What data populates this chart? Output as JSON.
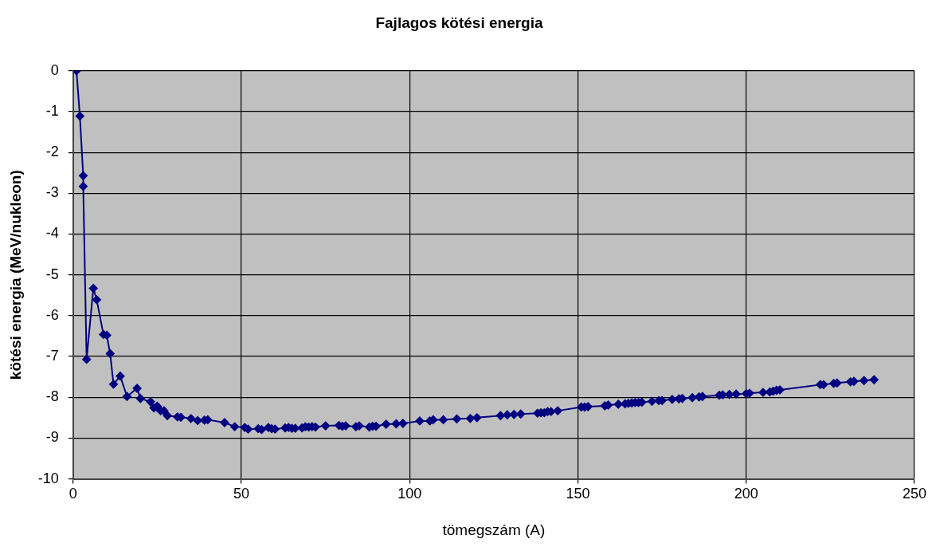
{
  "chart_data": {
    "type": "line",
    "title": "Fajlagos kötési energia",
    "xlabel": "tömegszám (A)",
    "ylabel": "kötési energia (MeV/nukleon)",
    "x": [
      1,
      2,
      3,
      3,
      4,
      6,
      7,
      9,
      10,
      11,
      12,
      14,
      16,
      19,
      20,
      23,
      24,
      25,
      26,
      27,
      28,
      31,
      32,
      35,
      37,
      39,
      40,
      45,
      48,
      51,
      52,
      55,
      56,
      58,
      59,
      60,
      63,
      64,
      65,
      66,
      68,
      69,
      70,
      71,
      72,
      75,
      79,
      80,
      81,
      84,
      85,
      88,
      89,
      90,
      93,
      96,
      98,
      103,
      106,
      107,
      110,
      114,
      118,
      120,
      127,
      129,
      131,
      133,
      138,
      139,
      140,
      141,
      142,
      144,
      151,
      152,
      153,
      158,
      159,
      162,
      164,
      165,
      166,
      167,
      168,
      169,
      172,
      174,
      175,
      178,
      180,
      181,
      184,
      186,
      187,
      192,
      193,
      195,
      197,
      200,
      201,
      205,
      207,
      208,
      209,
      210,
      222,
      223,
      226,
      227,
      231,
      232,
      235,
      238
    ],
    "series": [
      {
        "color": "#000080",
        "values": [
          0,
          -1.11,
          -2.57,
          -2.83,
          -7.07,
          -5.33,
          -5.61,
          -6.46,
          -6.48,
          -6.93,
          -7.68,
          -7.48,
          -7.98,
          -7.78,
          -8.03,
          -8.11,
          -8.26,
          -8.22,
          -8.33,
          -8.33,
          -8.45,
          -8.48,
          -8.49,
          -8.52,
          -8.57,
          -8.56,
          -8.55,
          -8.62,
          -8.72,
          -8.74,
          -8.78,
          -8.77,
          -8.79,
          -8.74,
          -8.77,
          -8.78,
          -8.75,
          -8.74,
          -8.76,
          -8.76,
          -8.75,
          -8.72,
          -8.73,
          -8.72,
          -8.73,
          -8.7,
          -8.69,
          -8.71,
          -8.7,
          -8.72,
          -8.7,
          -8.73,
          -8.71,
          -8.71,
          -8.66,
          -8.65,
          -8.64,
          -8.58,
          -8.58,
          -8.55,
          -8.55,
          -8.53,
          -8.52,
          -8.5,
          -8.45,
          -8.43,
          -8.42,
          -8.41,
          -8.39,
          -8.38,
          -8.38,
          -8.35,
          -8.35,
          -8.33,
          -8.24,
          -8.24,
          -8.23,
          -8.21,
          -8.19,
          -8.17,
          -8.16,
          -8.15,
          -8.14,
          -8.13,
          -8.13,
          -8.12,
          -8.1,
          -8.08,
          -8.08,
          -8.05,
          -8.04,
          -8.03,
          -8.01,
          -7.99,
          -7.98,
          -7.95,
          -7.94,
          -7.93,
          -7.92,
          -7.91,
          -7.9,
          -7.88,
          -7.87,
          -7.85,
          -7.83,
          -7.82,
          -7.69,
          -7.69,
          -7.66,
          -7.65,
          -7.62,
          -7.61,
          -7.59,
          -7.57
        ]
      }
    ],
    "xlim": [
      0,
      250
    ],
    "xticks": [
      0,
      50,
      100,
      150,
      200,
      250
    ],
    "ylim": [
      -10,
      0
    ],
    "yticks": [
      0,
      -1,
      -2,
      -3,
      -4,
      -5,
      -6,
      -7,
      -8,
      -9,
      -10
    ],
    "grid": true,
    "legend": false,
    "marker": "diamond",
    "line_style": "solid"
  }
}
